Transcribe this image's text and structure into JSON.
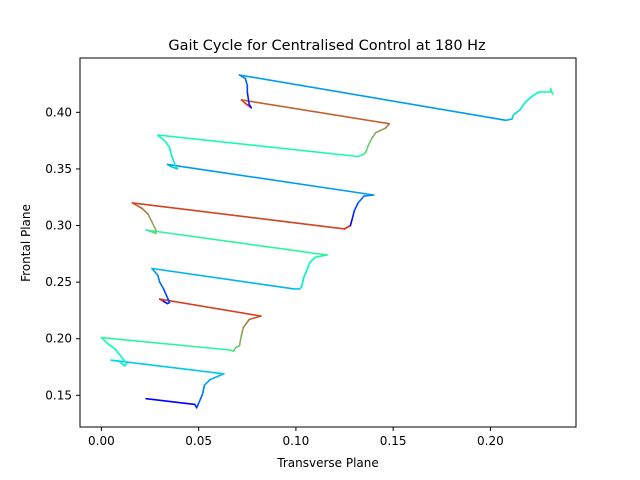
{
  "chart_data": {
    "type": "line",
    "title": "Gait Cycle for Centralised Control at 180 Hz",
    "xlabel": "Transverse Plane",
    "ylabel": "Frontal Plane",
    "xlim": [
      -0.011,
      0.244
    ],
    "ylim": [
      0.122,
      0.448
    ],
    "xticks": [
      0.0,
      0.05,
      0.1,
      0.15,
      0.2
    ],
    "xtick_labels": [
      "0.00",
      "0.05",
      "0.10",
      "0.15",
      "0.20"
    ],
    "yticks": [
      0.15,
      0.2,
      0.25,
      0.3,
      0.35,
      0.4
    ],
    "ytick_labels": [
      "0.15",
      "0.20",
      "0.25",
      "0.30",
      "0.35",
      "0.40"
    ],
    "grid": false,
    "legend": "none",
    "colormap": "rainbow",
    "points": [
      [
        0.023,
        0.147
      ],
      [
        0.048,
        0.142
      ],
      [
        0.049,
        0.139
      ],
      [
        0.05,
        0.143
      ],
      [
        0.052,
        0.151
      ],
      [
        0.053,
        0.159
      ],
      [
        0.056,
        0.164
      ],
      [
        0.063,
        0.169
      ],
      [
        0.005,
        0.181
      ],
      [
        0.009,
        0.18
      ],
      [
        0.012,
        0.176
      ],
      [
        0.013,
        0.178
      ],
      [
        0.007,
        0.191
      ],
      [
        0.003,
        0.196
      ],
      [
        0.0,
        0.201
      ],
      [
        0.066,
        0.19
      ],
      [
        0.068,
        0.189
      ],
      [
        0.069,
        0.192
      ],
      [
        0.071,
        0.194
      ],
      [
        0.072,
        0.203
      ],
      [
        0.073,
        0.21
      ],
      [
        0.076,
        0.217
      ],
      [
        0.082,
        0.22
      ],
      [
        0.03,
        0.235
      ],
      [
        0.032,
        0.233
      ],
      [
        0.034,
        0.231
      ],
      [
        0.035,
        0.232
      ],
      [
        0.032,
        0.244
      ],
      [
        0.03,
        0.25
      ],
      [
        0.029,
        0.256
      ],
      [
        0.026,
        0.262
      ],
      [
        0.099,
        0.244
      ],
      [
        0.102,
        0.244
      ],
      [
        0.103,
        0.246
      ],
      [
        0.104,
        0.254
      ],
      [
        0.106,
        0.262
      ],
      [
        0.107,
        0.267
      ],
      [
        0.11,
        0.272
      ],
      [
        0.116,
        0.274
      ],
      [
        0.023,
        0.296
      ],
      [
        0.025,
        0.295
      ],
      [
        0.028,
        0.293
      ],
      [
        0.028,
        0.296
      ],
      [
        0.026,
        0.303
      ],
      [
        0.024,
        0.31
      ],
      [
        0.021,
        0.315
      ],
      [
        0.016,
        0.32
      ],
      [
        0.125,
        0.297
      ],
      [
        0.128,
        0.3
      ],
      [
        0.129,
        0.306
      ],
      [
        0.13,
        0.313
      ],
      [
        0.132,
        0.32
      ],
      [
        0.135,
        0.326
      ],
      [
        0.14,
        0.327
      ],
      [
        0.034,
        0.354
      ],
      [
        0.036,
        0.352
      ],
      [
        0.039,
        0.35
      ],
      [
        0.038,
        0.353
      ],
      [
        0.036,
        0.362
      ],
      [
        0.035,
        0.369
      ],
      [
        0.033,
        0.374
      ],
      [
        0.029,
        0.38
      ],
      [
        0.132,
        0.361
      ],
      [
        0.135,
        0.363
      ],
      [
        0.136,
        0.365
      ],
      [
        0.137,
        0.37
      ],
      [
        0.139,
        0.377
      ],
      [
        0.141,
        0.382
      ],
      [
        0.146,
        0.386
      ],
      [
        0.148,
        0.39
      ],
      [
        0.072,
        0.411
      ],
      [
        0.074,
        0.408
      ],
      [
        0.077,
        0.404
      ],
      [
        0.076,
        0.407
      ],
      [
        0.075,
        0.418
      ],
      [
        0.075,
        0.424
      ],
      [
        0.074,
        0.43
      ],
      [
        0.071,
        0.433
      ],
      [
        0.208,
        0.393
      ],
      [
        0.211,
        0.394
      ],
      [
        0.212,
        0.398
      ],
      [
        0.215,
        0.402
      ],
      [
        0.218,
        0.409
      ],
      [
        0.222,
        0.415
      ],
      [
        0.225,
        0.418
      ],
      [
        0.231,
        0.418
      ],
      [
        0.231,
        0.421
      ],
      [
        0.232,
        0.416
      ]
    ]
  }
}
